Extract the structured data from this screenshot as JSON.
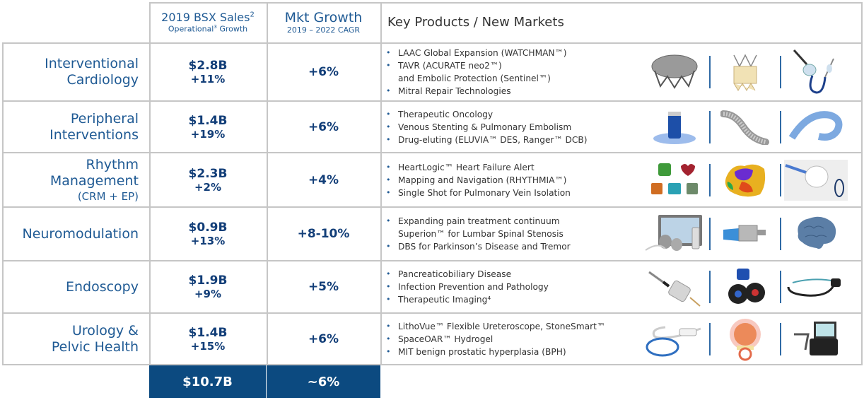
{
  "header": {
    "sales_title": "2019 BSX Sales",
    "sales_title_sup": "2",
    "sales_sub": "Operational",
    "sales_sub_sup": "3",
    "sales_sub_tail": " Growth",
    "mkt_title": "Mkt Growth",
    "mkt_sub": "2019 – 2022 CAGR",
    "products_title": "Key Products / New Markets"
  },
  "rows": [
    {
      "segment": [
        "Interventional",
        "Cardiology"
      ],
      "sales": "$2.8B",
      "growth": "+11%",
      "market": "+6%",
      "products": [
        {
          "lines": [
            "LAAC Global Expansion (WATCHMAN™)"
          ]
        },
        {
          "lines": [
            "TAVR (ACURATE neo2™)",
            "and Embolic Protection (Sentinel™)"
          ]
        },
        {
          "lines": [
            "Mitral Repair Technologies"
          ]
        }
      ],
      "images": [
        "watchman-device-icon",
        "tavr-valve-icon",
        "sentinel-catheter-icon"
      ]
    },
    {
      "segment": [
        "Peripheral",
        "Interventions"
      ],
      "sales": "$1.4B",
      "growth": "+19%",
      "market": "+6%",
      "products": [
        {
          "lines": [
            "Therapeutic Oncology"
          ]
        },
        {
          "lines": [
            "Venous Stenting & Pulmonary Embolism"
          ]
        },
        {
          "lines": [
            "Drug-eluting (ELUVIA™ DES, Ranger™ DCB)"
          ]
        }
      ],
      "images": [
        "oncology-vial-icon",
        "venous-stent-icon",
        "drug-eluting-stent-icon"
      ]
    },
    {
      "segment": [
        "Rhythm",
        "Management"
      ],
      "segment_sub": "(CRM + EP)",
      "sales": "$2.3B",
      "growth": "+2%",
      "market": "+4%",
      "products": [
        {
          "lines": [
            "HeartLogic™ Heart Failure Alert"
          ]
        },
        {
          "lines": [
            "Mapping and Navigation (RHYTHMIA™)"
          ]
        },
        {
          "lines": [
            "Single Shot for Pulmonary Vein Isolation"
          ]
        }
      ],
      "images": [
        "heartlogic-icons",
        "cardiac-map-icon",
        "balloon-catheter-icon"
      ]
    },
    {
      "segment": [
        "Neuromodulation"
      ],
      "sales": "$0.9B",
      "growth": "+13%",
      "market": "+8-10%",
      "products": [
        {
          "lines": [
            "Expanding pain treatment continuum",
            "Superion™ for Lumbar Spinal Stenosis"
          ]
        },
        {
          "lines": [
            "DBS for Parkinson’s Disease and Tremor"
          ]
        }
      ],
      "images": [
        "neurostimulator-system-icon",
        "superion-implant-icon",
        "brain-icon"
      ]
    },
    {
      "segment": [
        "Endoscopy"
      ],
      "sales": "$1.9B",
      "growth": "+9%",
      "market": "+5%",
      "products": [
        {
          "lines": [
            "Pancreaticobiliary Disease"
          ]
        },
        {
          "lines": [
            "Infection Prevention and Pathology"
          ]
        },
        {
          "lines": [
            "Therapeutic Imaging⁴"
          ]
        }
      ],
      "images": [
        "biliary-stent-icon",
        "endoscope-valve-icon",
        "endoscope-icon"
      ]
    },
    {
      "segment": [
        "Urology &",
        "Pelvic Health"
      ],
      "sales": "$1.4B",
      "growth": "+15%",
      "market": "+6%",
      "products": [
        {
          "lines": [
            "LithoVue™ Flexible Ureteroscope, StoneSmart™"
          ]
        },
        {
          "lines": [
            "SpaceOAR™ Hydrogel"
          ]
        },
        {
          "lines": [
            "MIT benign prostatic hyperplasia (BPH)"
          ]
        }
      ],
      "images": [
        "ureteroscope-icon",
        "prostate-hydrogel-icon",
        "stonesmart-console-icon"
      ]
    }
  ],
  "totals": {
    "sales": "$10.7B",
    "market": "~6%"
  },
  "colors": {
    "brand_blue": "#0c4a80",
    "text_blue": "#1f5a94",
    "border": "#c6c6c6"
  }
}
